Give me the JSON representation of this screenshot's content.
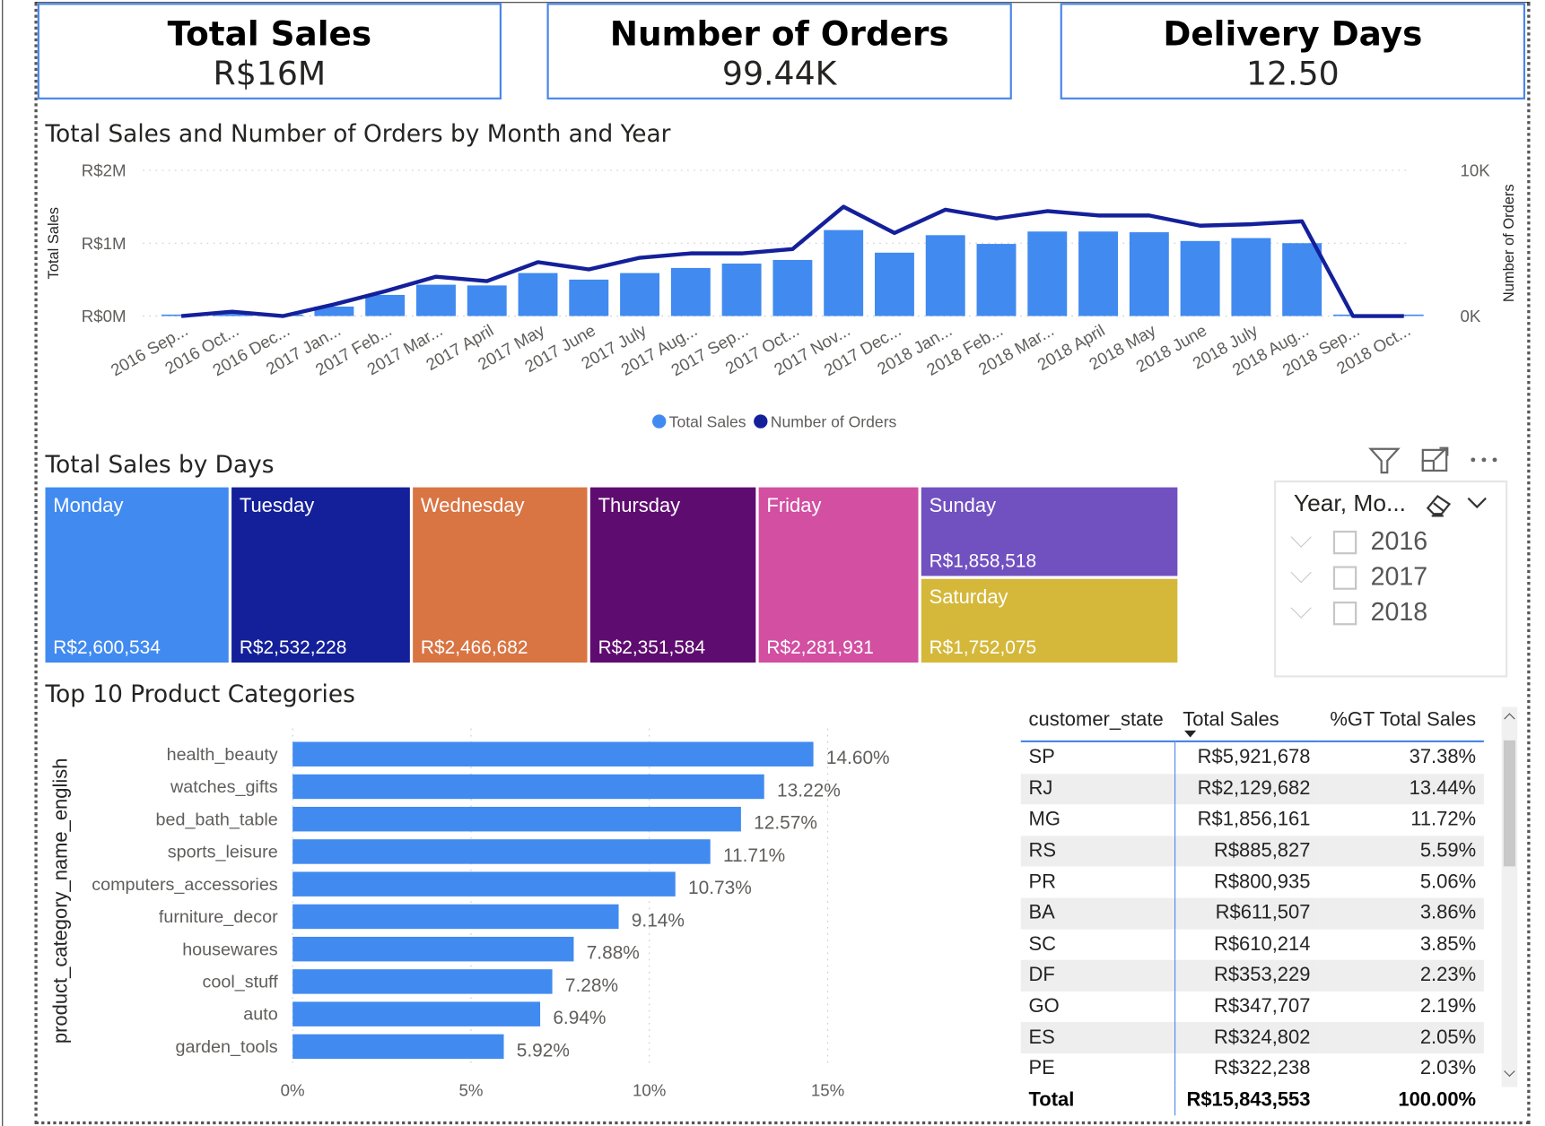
{
  "kpis": [
    {
      "title": "Total Sales",
      "value": "R$16M"
    },
    {
      "title": "Number of Orders",
      "value": "99.44K"
    },
    {
      "title": "Delivery Days",
      "value": "12.50"
    }
  ],
  "colors": {
    "bar": "#418af0",
    "line": "#14209a",
    "kpi_border": "#4a86e8"
  },
  "chart_data": [
    {
      "type": "bar+line",
      "title": "Total Sales and Number of Orders by Month and Year",
      "ylabel": "Total Sales",
      "y2label": "Number of Orders",
      "ylim": [
        0,
        2000000
      ],
      "y2lim": [
        0,
        10000
      ],
      "yticks": [
        "R$0M",
        "R$1M",
        "R$2M"
      ],
      "y2ticks": [
        "0K",
        "10K"
      ],
      "grid": true,
      "legend": "bottom",
      "categories": [
        "2016 Sep...",
        "2016 Oct...",
        "2016 Dec...",
        "2017 Jan...",
        "2017 Feb...",
        "2017 Mar...",
        "2017 April",
        "2017 May",
        "2017 June",
        "2017 July",
        "2017 Aug...",
        "2017 Sep...",
        "2017 Oct...",
        "2017 Nov...",
        "2017 Dec...",
        "2018 Jan...",
        "2018 Feb...",
        "2018 Mar...",
        "2018 April",
        "2018 May",
        "2018 June",
        "2018 July",
        "2018 Aug...",
        "2018 Sep...",
        "2018 Oct..."
      ],
      "series": [
        {
          "name": "Total Sales",
          "type": "bar",
          "values": [
            10000,
            50000,
            0,
            130000,
            290000,
            430000,
            420000,
            590000,
            500000,
            590000,
            660000,
            720000,
            770000,
            1180000,
            870000,
            1110000,
            990000,
            1160000,
            1160000,
            1150000,
            1030000,
            1070000,
            1000000,
            5000,
            0
          ]
        },
        {
          "name": "Number of Orders",
          "type": "line",
          "values": [
            0,
            300,
            0,
            800,
            1700,
            2700,
            2400,
            3700,
            3200,
            4000,
            4300,
            4300,
            4600,
            7500,
            5700,
            7300,
            6700,
            7200,
            6900,
            6900,
            6200,
            6300,
            6500,
            0,
            0
          ]
        }
      ]
    },
    {
      "type": "treemap",
      "title": "Total Sales by Days",
      "items": [
        {
          "name": "Monday",
          "label": "R$2,600,534",
          "value": 2600534,
          "color": "#418af0"
        },
        {
          "name": "Tuesday",
          "label": "R$2,532,228",
          "value": 2532228,
          "color": "#14209a"
        },
        {
          "name": "Wednesday",
          "label": "R$2,466,682",
          "value": 2466682,
          "color": "#d97443"
        },
        {
          "name": "Thursday",
          "label": "R$2,351,584",
          "value": 2351584,
          "color": "#5f0c70"
        },
        {
          "name": "Friday",
          "label": "R$2,281,931",
          "value": 2281931,
          "color": "#d24fa2"
        },
        {
          "name": "Sunday",
          "label": "R$1,858,518",
          "value": 1858518,
          "color": "#7150c0"
        },
        {
          "name": "Saturday",
          "label": "R$1,752,075",
          "value": 1752075,
          "color": "#d5b83a"
        }
      ]
    },
    {
      "type": "bar",
      "orientation": "horizontal",
      "title": "Top 10 Product Categories",
      "ylabel": "product_category_name_english",
      "xlim": [
        0,
        15
      ],
      "xticks": [
        "0%",
        "5%",
        "10%",
        "15%"
      ],
      "grid": true,
      "categories": [
        "health_beauty",
        "watches_gifts",
        "bed_bath_table",
        "sports_leisure",
        "computers_accessories",
        "furniture_decor",
        "housewares",
        "cool_stuff",
        "auto",
        "garden_tools"
      ],
      "values": [
        14.6,
        13.22,
        12.57,
        11.71,
        10.73,
        9.14,
        7.88,
        7.28,
        6.94,
        5.92
      ],
      "labels": [
        "14.60%",
        "13.22%",
        "12.57%",
        "11.71%",
        "10.73%",
        "9.14%",
        "7.88%",
        "7.28%",
        "6.94%",
        "5.92%"
      ]
    }
  ],
  "legend": {
    "items": [
      "Total Sales",
      "Number of Orders"
    ]
  },
  "slicer": {
    "title": "Year, Mo...",
    "items": [
      "2016",
      "2017",
      "2018"
    ]
  },
  "table": {
    "headers": [
      "customer_state",
      "Total Sales",
      "%GT Total Sales"
    ],
    "sorted_column": "Total Sales",
    "rows": [
      [
        "SP",
        "R$5,921,678",
        "37.38%"
      ],
      [
        "RJ",
        "R$2,129,682",
        "13.44%"
      ],
      [
        "MG",
        "R$1,856,161",
        "11.72%"
      ],
      [
        "RS",
        "R$885,827",
        "5.59%"
      ],
      [
        "PR",
        "R$800,935",
        "5.06%"
      ],
      [
        "BA",
        "R$611,507",
        "3.86%"
      ],
      [
        "SC",
        "R$610,214",
        "3.85%"
      ],
      [
        "DF",
        "R$353,229",
        "2.23%"
      ],
      [
        "GO",
        "R$347,707",
        "2.19%"
      ],
      [
        "ES",
        "R$324,802",
        "2.05%"
      ],
      [
        "PE",
        "R$322,238",
        "2.03%"
      ]
    ],
    "total": [
      "Total",
      "R$15,843,553",
      "100.00%"
    ]
  }
}
